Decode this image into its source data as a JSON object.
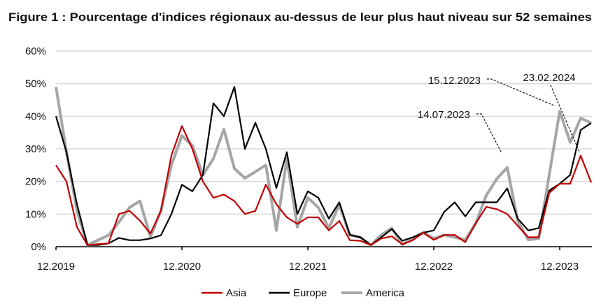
{
  "chart_data": {
    "type": "line",
    "title": "Figure 1 : Pourcentage d'indices régionaux au-dessus de leur plus haut niveau sur 52 semaines",
    "xlabel": "",
    "ylabel": "",
    "ylim": [
      0,
      60
    ],
    "yticks": [
      "0%",
      "10%",
      "20%",
      "30%",
      "40%",
      "50%",
      "60%"
    ],
    "xticks": [
      "12.2019",
      "12.2020",
      "12.2021",
      "12.2022",
      "12.2023"
    ],
    "grid": "horizontal",
    "legend_position": "bottom",
    "x": [
      "2019-12",
      "2020-01",
      "2020-02",
      "2020-03",
      "2020-04",
      "2020-05",
      "2020-06",
      "2020-07",
      "2020-08",
      "2020-09",
      "2020-10",
      "2020-11",
      "2020-12",
      "2021-01",
      "2021-02",
      "2021-03",
      "2021-04",
      "2021-05",
      "2021-06",
      "2021-07",
      "2021-08",
      "2021-09",
      "2021-10",
      "2021-11",
      "2021-12",
      "2022-01",
      "2022-02",
      "2022-03",
      "2022-04",
      "2022-05",
      "2022-06",
      "2022-07",
      "2022-08",
      "2022-09",
      "2022-10",
      "2022-11",
      "2022-12",
      "2023-01",
      "2023-02",
      "2023-03",
      "2023-04",
      "2023-05",
      "2023-06",
      "2023-07",
      "2023-08",
      "2023-09",
      "2023-10",
      "2023-11",
      "2023-12",
      "2024-01",
      "2024-02",
      "2024-03"
    ],
    "series": [
      {
        "name": "Asia",
        "color": "#c00000",
        "values": [
          25,
          20,
          6,
          0.5,
          0.8,
          1,
          10,
          11,
          8,
          4,
          11,
          28,
          37,
          30,
          20,
          15,
          16,
          14,
          10,
          11,
          19,
          13,
          9,
          7,
          9,
          9,
          5,
          7.9,
          2,
          1.8,
          0.5,
          2.5,
          3.2,
          0.7,
          2,
          4.3,
          2.1,
          3.6,
          3.6,
          1.4,
          7.2,
          12.2,
          11.5,
          10,
          6.4,
          2.9,
          2.9,
          16.5,
          19.3,
          19.3,
          27.9,
          19.7
        ]
      },
      {
        "name": "Europe",
        "color": "#000000",
        "values": [
          40,
          29,
          13,
          0.5,
          0.5,
          1,
          2.7,
          2,
          2,
          2.5,
          3.5,
          10,
          19,
          17,
          22,
          44,
          40,
          49,
          30,
          38,
          30,
          18,
          29,
          10,
          17,
          15,
          8.6,
          13.6,
          3.6,
          2.9,
          0.5,
          2.9,
          5.4,
          1.8,
          2.9,
          4.3,
          5,
          10.7,
          13.6,
          9.3,
          13.6,
          13.6,
          13.6,
          17.9,
          8.6,
          5,
          5.7,
          17.2,
          19.3,
          22,
          35.8,
          37.9
        ]
      },
      {
        "name": "America",
        "color": "#a6a6a6",
        "values": [
          49,
          29,
          11,
          0.5,
          2,
          3.5,
          7.5,
          12,
          14,
          3,
          11,
          25,
          34,
          31,
          22,
          27,
          36,
          24,
          21,
          23,
          25,
          5,
          27,
          6,
          15,
          12,
          5.7,
          12.9,
          3.6,
          2.9,
          0.5,
          3.6,
          5.7,
          0.7,
          2.5,
          4.3,
          2.5,
          3.6,
          2.9,
          2.1,
          7.2,
          15.7,
          20.8,
          24.3,
          7.9,
          2.1,
          2.5,
          22,
          41.5,
          32,
          39.4,
          37.9
        ]
      }
    ],
    "annotations": [
      {
        "label": "14.07.2023"
      },
      {
        "label": "15.12.2023"
      },
      {
        "label": "23.02.2024"
      }
    ]
  }
}
